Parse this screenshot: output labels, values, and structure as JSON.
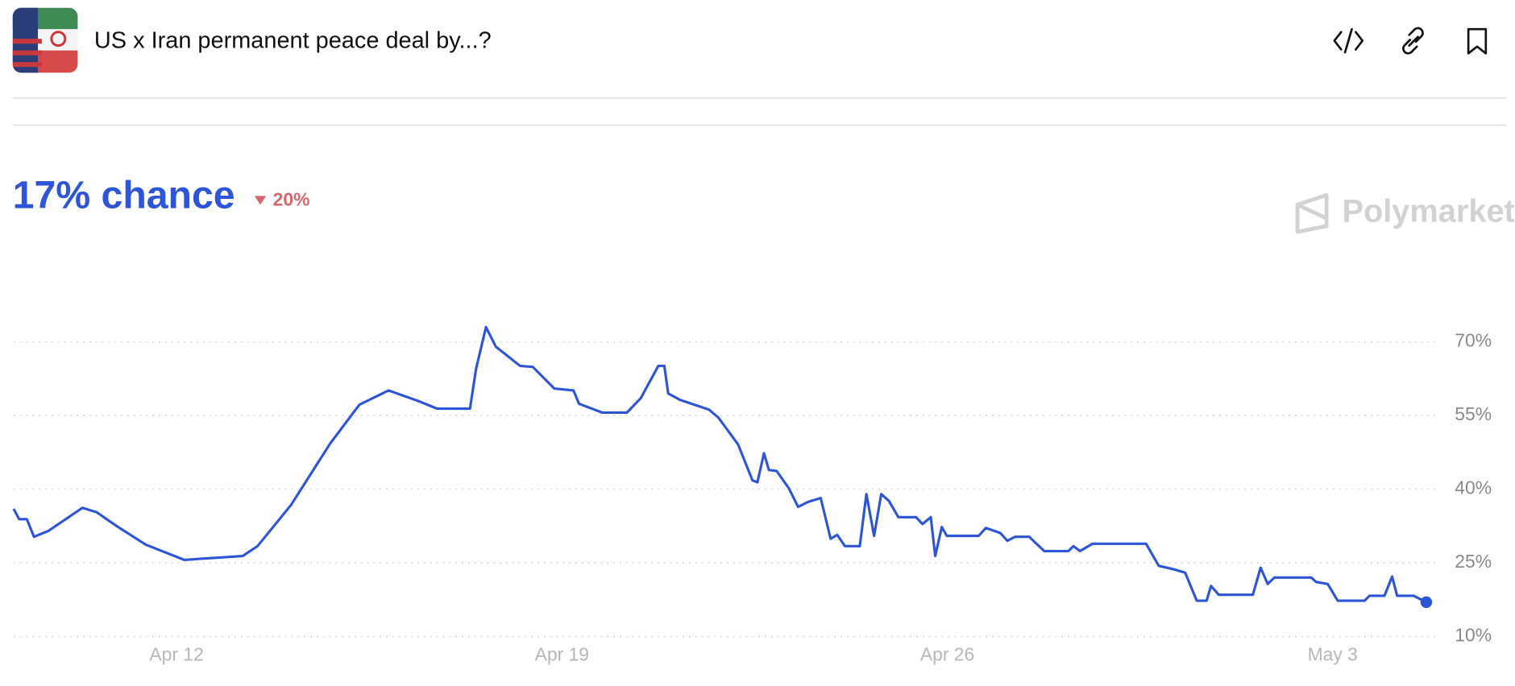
{
  "header": {
    "title": "US x Iran permanent peace deal by...?"
  },
  "headline": "17% chance",
  "change": "20%",
  "brand": "Polymarket",
  "chart_data": {
    "type": "line",
    "x": [
      9.04,
      9.14,
      9.28,
      9.41,
      9.67,
      10.29,
      10.55,
      10.91,
      11.44,
      12.14,
      13.2,
      13.47,
      14.08,
      14.79,
      15.32,
      15.85,
      16.38,
      16.73,
      17.33,
      17.44,
      17.62,
      17.8,
      18.24,
      18.47,
      18.86,
      19.21,
      19.31,
      19.73,
      20.18,
      20.43,
      20.75,
      20.86,
      20.93,
      21.14,
      21.67,
      21.84,
      22.2,
      22.46,
      22.55,
      22.67,
      22.76,
      22.9,
      23.12,
      23.29,
      23.47,
      23.7,
      23.88,
      24.0,
      24.14,
      24.41,
      24.53,
      24.67,
      24.8,
      24.94,
      25.11,
      25.43,
      25.55,
      25.7,
      25.78,
      25.9,
      25.99,
      26.57,
      26.7,
      26.96,
      27.09,
      27.23,
      27.49,
      27.58,
      27.76,
      28.2,
      28.29,
      28.41,
      28.64,
      29.61,
      29.84,
      30.14,
      30.32,
      30.53,
      30.71,
      30.79,
      30.93,
      31.55,
      31.69,
      31.82,
      31.94,
      32.61,
      32.7,
      32.91,
      33.09,
      33.58,
      33.67,
      33.94,
      34.08,
      34.17,
      34.47,
      34.7
    ],
    "series": [
      {
        "color": "#2d55d6",
        "values": [
          36.0,
          33.9,
          33.9,
          30.3,
          31.5,
          36.2,
          35.3,
          32.5,
          28.7,
          25.6,
          26.4,
          28.4,
          36.8,
          49.3,
          57.2,
          60.1,
          58.0,
          56.4,
          56.4,
          64.5,
          73.0,
          69.0,
          65.1,
          64.9,
          60.5,
          60.1,
          57.4,
          55.6,
          55.6,
          58.5,
          65.1,
          65.1,
          59.5,
          58.2,
          56.2,
          54.6,
          49.1,
          41.8,
          41.4,
          47.3,
          43.9,
          43.7,
          40.2,
          36.4,
          37.4,
          38.2,
          29.9,
          30.7,
          28.4,
          28.4,
          39.0,
          30.5,
          39.0,
          37.6,
          34.3,
          34.3,
          32.9,
          34.3,
          26.4,
          32.3,
          30.5,
          30.5,
          32.1,
          31.1,
          29.5,
          30.3,
          30.3,
          29.3,
          27.4,
          27.4,
          28.4,
          27.4,
          28.9,
          28.9,
          24.4,
          23.6,
          23.0,
          17.3,
          17.3,
          20.3,
          18.5,
          18.5,
          24.0,
          20.7,
          22.0,
          22.0,
          21.1,
          20.7,
          17.3,
          17.3,
          18.3,
          18.3,
          22.2,
          18.3,
          18.3,
          17.0
        ]
      }
    ],
    "xlim": [
      9.04,
      34.9
    ],
    "xticks": [
      {
        "value": 12,
        "label": "Apr 12"
      },
      {
        "value": 19,
        "label": "Apr 19"
      },
      {
        "value": 26,
        "label": "Apr 26"
      },
      {
        "value": 33,
        "label": "May 3"
      }
    ],
    "ylim": [
      10,
      75
    ],
    "yticks": [
      {
        "value": 10,
        "label": "10%"
      },
      {
        "value": 25,
        "label": "25%"
      },
      {
        "value": 40,
        "label": "40%"
      },
      {
        "value": 55,
        "label": "55%"
      },
      {
        "value": 70,
        "label": "70%"
      }
    ],
    "grid": true
  }
}
